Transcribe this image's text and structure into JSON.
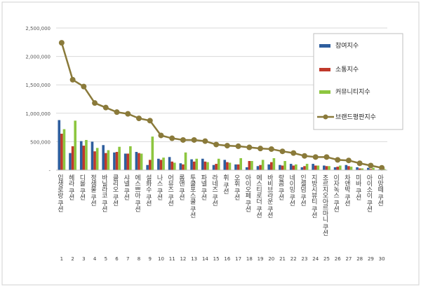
{
  "chart_data": {
    "type": "bar",
    "categories": [
      "입생로랑 쿠션",
      "헤라 쿠션",
      "디올 쿠션",
      "정샘물 쿠션",
      "바닐라코 쿠션",
      "클리오 쿠션",
      "샤넬 쿠션",
      "에스쁘아 쿠션",
      "설화수 쿠션",
      "나스 쿠션",
      "어뮤즈 쿠션",
      "롬앤 쿠션",
      "투쿨포스쿨 쿠션",
      "파넬 쿠션",
      "라네즈 쿠션",
      "휘 쿠션",
      "오휘 쿠션",
      "아이오페 쿠션",
      "에스티로더 쿠션",
      "바비브라운 쿠션",
      "랑콤 쿠션",
      "네이밍 쿠션",
      "인셀덤 쿠션",
      "지방시뷰티 쿠션",
      "조르지오아르마니 쿠션",
      "이자녹스 쿠션",
      "차앤박 쿠션",
      "미바 쿠션",
      "아이소이 쿠션",
      "아망떼 쿠션"
    ],
    "ranks": [
      "1",
      "2",
      "3",
      "4",
      "5",
      "6",
      "7",
      "8",
      "9",
      "10",
      "11",
      "12",
      "13",
      "14",
      "15",
      "16",
      "17",
      "18",
      "19",
      "20",
      "21",
      "22",
      "23",
      "24",
      "25",
      "26",
      "27",
      "28",
      "29",
      "30"
    ],
    "series": [
      {
        "name": "참여지수",
        "kind": "bar",
        "color": "#2e5e9e",
        "values": [
          880000,
          300000,
          510000,
          500000,
          440000,
          310000,
          290000,
          320000,
          90000,
          200000,
          230000,
          120000,
          190000,
          200000,
          90000,
          180000,
          100000,
          50000,
          70000,
          100000,
          90000,
          110000,
          50000,
          110000,
          80000,
          50000,
          90000,
          50000,
          40000,
          10000
        ]
      },
      {
        "name": "소통지수",
        "kind": "bar",
        "color": "#c0392b",
        "values": [
          640000,
          420000,
          430000,
          330000,
          300000,
          320000,
          290000,
          300000,
          180000,
          180000,
          150000,
          100000,
          150000,
          150000,
          110000,
          140000,
          100000,
          160000,
          90000,
          140000,
          80000,
          80000,
          70000,
          80000,
          70000,
          60000,
          70000,
          30000,
          20000,
          10000
        ]
      },
      {
        "name": "커뮤니티지수",
        "kind": "bar",
        "color": "#8dc63f",
        "values": [
          720000,
          870000,
          530000,
          390000,
          350000,
          410000,
          420000,
          290000,
          590000,
          220000,
          130000,
          310000,
          200000,
          140000,
          200000,
          130000,
          210000,
          160000,
          180000,
          210000,
          160000,
          100000,
          110000,
          80000,
          70000,
          80000,
          60000,
          30000,
          40000,
          20000
        ]
      },
      {
        "name": "브랜드평판지수",
        "kind": "line",
        "color": "#8a7a3a",
        "values": [
          2240000,
          1590000,
          1470000,
          1180000,
          1100000,
          1020000,
          990000,
          910000,
          870000,
          610000,
          560000,
          530000,
          530000,
          510000,
          450000,
          430000,
          420000,
          400000,
          380000,
          370000,
          330000,
          300000,
          250000,
          230000,
          230000,
          180000,
          170000,
          120000,
          80000,
          40000
        ]
      }
    ],
    "ylim": [
      0,
      2500000
    ],
    "yticks": [
      0,
      500000,
      1000000,
      1500000,
      2000000,
      2500000
    ],
    "ytick_labels": [
      "-",
      "500,000",
      "1,000,000",
      "1,500,000",
      "2,000,000",
      "2,500,000"
    ],
    "legend_position": "right",
    "gridlines": true
  }
}
